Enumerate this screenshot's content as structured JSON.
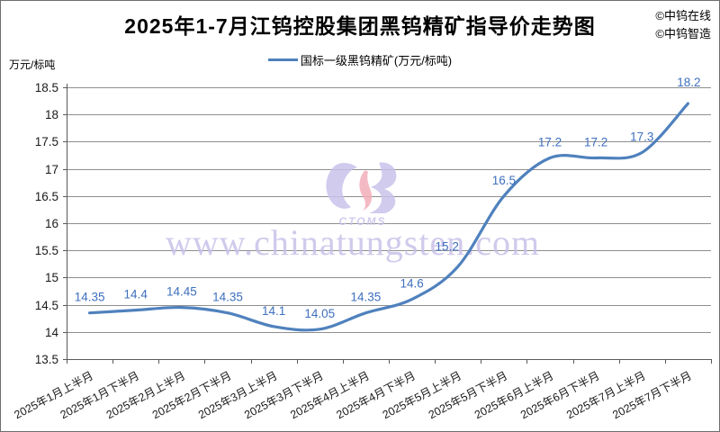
{
  "header": {
    "credits": [
      "©中钨在线",
      "©中钨智造"
    ]
  },
  "watermark": {
    "text": "www.chinatungsten.com",
    "logo_text": "CTOMS"
  },
  "chart_data": {
    "type": "line",
    "title": "2025年1-7月江钨控股集团黑钨精矿指导价走势图",
    "xlabel": "",
    "ylabel": "万元/标吨",
    "categories": [
      "2025年1月上半月",
      "2025年1月下半月",
      "2025年2月上半月",
      "2025年2月下半月",
      "2025年3月上半月",
      "2025年3月下半月",
      "2025年4月上半月",
      "2025年4月下半月",
      "2025年5月上半月",
      "2025年5月下半月",
      "2025年6月上半月",
      "2025年6月下半月",
      "2025年7月上半月",
      "2025年7月下半月"
    ],
    "series": [
      {
        "name": "国标一级黑钨精矿(万元/标吨)",
        "values": [
          14.35,
          14.4,
          14.45,
          14.35,
          14.1,
          14.05,
          14.35,
          14.6,
          15.2,
          16.5,
          17.2,
          17.2,
          17.3,
          18.2
        ]
      }
    ],
    "ylim": [
      13.5,
      18.5
    ],
    "yticks": [
      13.5,
      14,
      14.5,
      15,
      15.5,
      16,
      16.5,
      17,
      17.5,
      18,
      18.5
    ],
    "grid": true,
    "legend_position": "top",
    "smoothed_line": true,
    "colors": {
      "line": "#4F81BD",
      "data_label": "#3E6FBE",
      "grid": "#8f8f8f",
      "axis": "#595959",
      "tick_label": "#1a1a1a",
      "watermark_text": "#c7bfe9",
      "watermark_lavender": "#c9c2ec",
      "watermark_pink": "#f3afba"
    }
  }
}
